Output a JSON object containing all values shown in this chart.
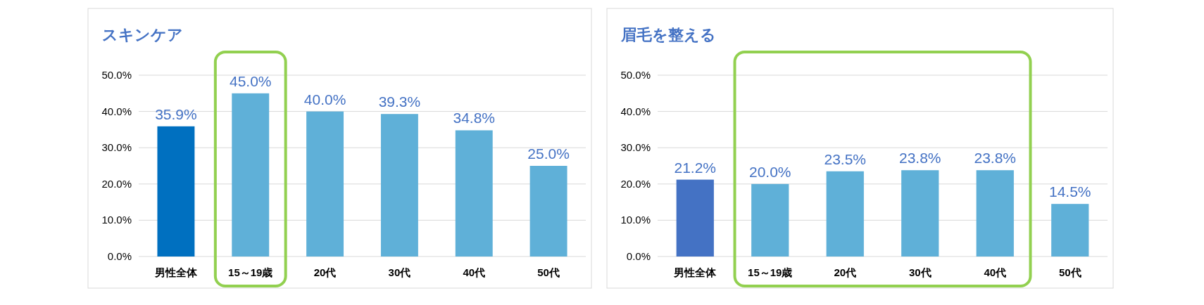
{
  "chart_data": [
    {
      "type": "bar",
      "title": "スキンケア",
      "categories": [
        "男性全体",
        "15～19歳",
        "20代",
        "30代",
        "40代",
        "50代"
      ],
      "values": [
        35.9,
        45.0,
        40.0,
        39.3,
        34.8,
        25.0
      ],
      "colors": [
        "#0070c0",
        "#5fb0d8",
        "#5fb0d8",
        "#5fb0d8",
        "#5fb0d8",
        "#5fb0d8"
      ],
      "value_labels": [
        "35.9%",
        "45.0%",
        "40.0%",
        "39.3%",
        "34.8%",
        "25.0%"
      ],
      "ylim": [
        0,
        50
      ],
      "yticks": [
        {
          "value": 0,
          "label": "0.0%"
        },
        {
          "value": 10,
          "label": "10.0%"
        },
        {
          "value": 20,
          "label": "20.0%"
        },
        {
          "value": 30,
          "label": "30.0%"
        },
        {
          "value": 40,
          "label": "40.0%"
        },
        {
          "value": 50,
          "label": "50.0%"
        }
      ],
      "grid": "y"
    },
    {
      "type": "bar",
      "title": "眉毛を整える",
      "categories": [
        "男性全体",
        "15～19歳",
        "20代",
        "30代",
        "40代",
        "50代"
      ],
      "values": [
        21.2,
        20.0,
        23.5,
        23.8,
        23.8,
        14.5
      ],
      "colors": [
        "#4472c4",
        "#5fb0d8",
        "#5fb0d8",
        "#5fb0d8",
        "#5fb0d8",
        "#5fb0d8"
      ],
      "value_labels": [
        "21.2%",
        "20.0%",
        "23.5%",
        "23.8%",
        "23.8%",
        "14.5%"
      ],
      "ylim": [
        0,
        50
      ],
      "yticks": [
        {
          "value": 0,
          "label": "0.0%"
        },
        {
          "value": 10,
          "label": "10.0%"
        },
        {
          "value": 20,
          "label": "20.0%"
        },
        {
          "value": 30,
          "label": "30.0%"
        },
        {
          "value": 40,
          "label": "40.0%"
        },
        {
          "value": 50,
          "label": "50.0%"
        }
      ],
      "grid": "y"
    }
  ]
}
